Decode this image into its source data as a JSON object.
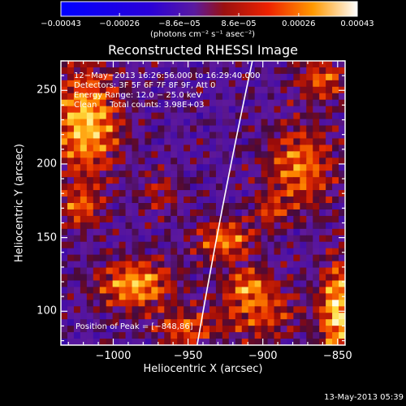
{
  "chart_data": {
    "type": "heatmap",
    "title": "Reconstructed RHESSI Image",
    "xlabel": "Heliocentric X (arcsec)",
    "ylabel": "Heliocentric Y (arcsec)",
    "xlim": [
      -1035,
      -845
    ],
    "ylim": [
      77,
      270
    ],
    "x_ticks": [
      -1000,
      -950,
      -900,
      -850
    ],
    "y_ticks": [
      100,
      150,
      200,
      250
    ],
    "x_tick_labels": [
      "−1000",
      "−950",
      "−900",
      "−850"
    ],
    "y_tick_labels": [
      "100",
      "150",
      "200",
      "250"
    ],
    "colorbar": {
      "min": -0.00043,
      "max": 0.00043,
      "tick_values": [
        -0.00043,
        -0.00026,
        -8.6e-05,
        8.6e-05,
        0.00026,
        0.00043
      ],
      "tick_labels": [
        "−0.00043",
        "−0.00026",
        "−8.6e−05",
        "8.6e−05",
        "0.00026",
        "0.00043"
      ],
      "unit_label": "(photons cm⁻² s⁻¹ asec⁻²)"
    },
    "annotations": [
      "12−May−2013 16:26:56.000 to 16:29:40.000",
      "Detectors: 3F 5F 6F 7F 8F 9F, Att 0",
      "Energy Range: 12.0 − 25.0 keV",
      "Clean     Total counts: 3.98E+03"
    ],
    "peak_label": "Position of Peak = [−848,86]",
    "peak_position": [
      -848,
      86
    ],
    "limb": [
      [
        -943.9,
        77
      ],
      [
        -928,
        170
      ],
      [
        -907,
        270
      ]
    ],
    "hot_regions": [
      {
        "x": -1018,
        "y": 228,
        "sx": 16,
        "sy": 26,
        "a": 1.0
      },
      {
        "x": -1022,
        "y": 170,
        "sx": 10,
        "sy": 10,
        "a": 0.6
      },
      {
        "x": -985,
        "y": 118,
        "sx": 18,
        "sy": 12,
        "a": 0.9
      },
      {
        "x": -952,
        "y": 88,
        "sx": 14,
        "sy": 8,
        "a": 0.65
      },
      {
        "x": -903,
        "y": 100,
        "sx": 20,
        "sy": 14,
        "a": 0.6
      },
      {
        "x": -925,
        "y": 148,
        "sx": 14,
        "sy": 10,
        "a": 0.75
      },
      {
        "x": -910,
        "y": 118,
        "sx": 10,
        "sy": 8,
        "a": 0.55
      },
      {
        "x": -875,
        "y": 198,
        "sx": 16,
        "sy": 20,
        "a": 0.75
      },
      {
        "x": -850,
        "y": 100,
        "sx": 8,
        "sy": 24,
        "a": 1.05
      },
      {
        "x": -860,
        "y": 258,
        "sx": 12,
        "sy": 10,
        "a": 0.65
      },
      {
        "x": -968,
        "y": 180,
        "sx": 10,
        "sy": 10,
        "a": 0.4
      },
      {
        "x": -895,
        "y": 168,
        "sx": 8,
        "sy": 8,
        "a": 0.45
      }
    ],
    "footer_timestamp": "13-May-2013 05:39"
  }
}
